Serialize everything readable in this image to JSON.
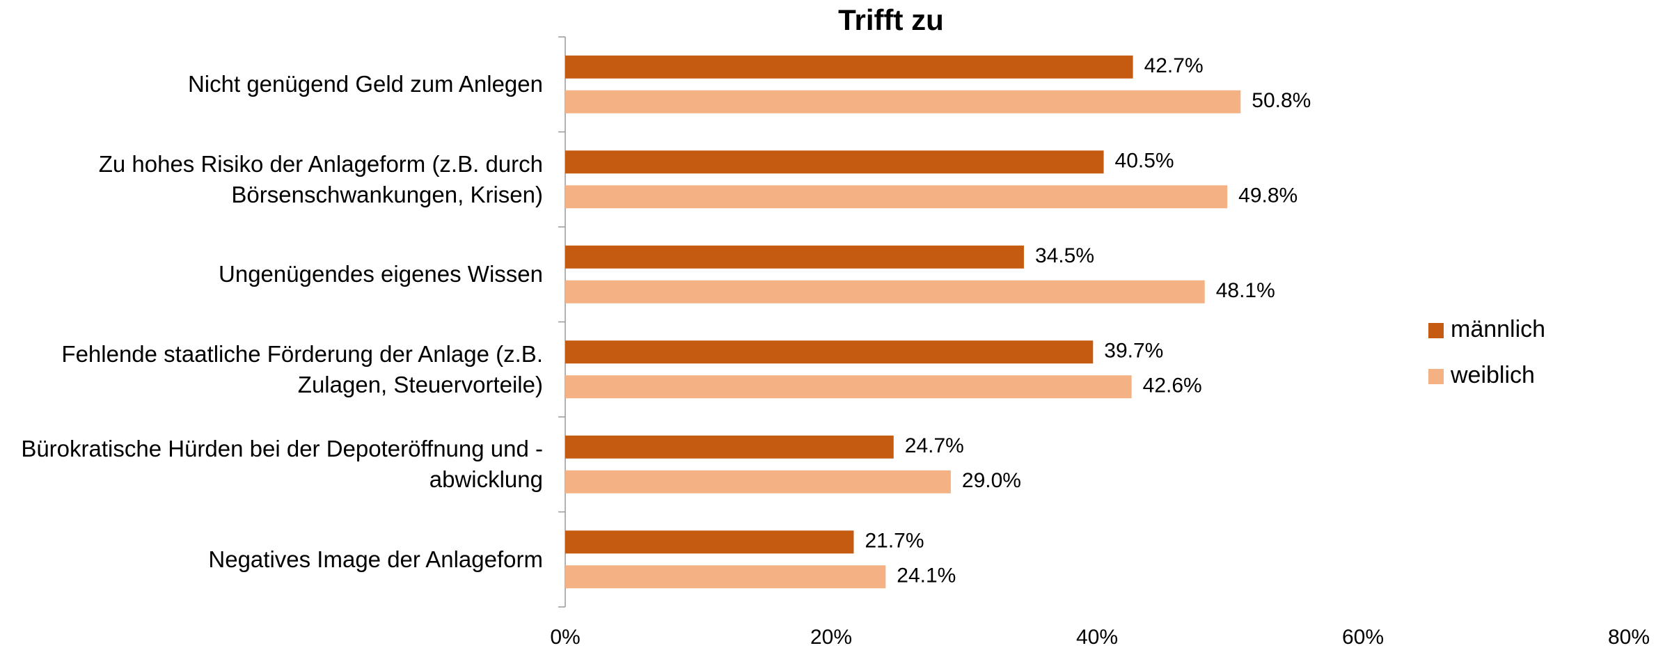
{
  "chart_data": {
    "type": "hbar",
    "title": "Trifft zu",
    "categories": [
      "Nicht genügend Geld zum Anlegen",
      "Zu hohes Risiko der Anlageform (z.B. durch Börsenschwankungen, Krisen)",
      "Ungenügendes eigenes Wissen",
      "Fehlende staatliche Förderung der Anlage (z.B. Zulagen, Steuervorteile)",
      "Bürokratische Hürden bei der Depoteröffnung und -abwicklung",
      "Negatives Image der Anlageform"
    ],
    "series": [
      {
        "name": "männlich",
        "color": "#c55a11",
        "values": [
          42.7,
          40.5,
          34.5,
          39.7,
          24.7,
          21.7
        ],
        "value_labels": [
          "42.7%",
          "40.5%",
          "34.5%",
          "39.7%",
          "24.7%",
          "21.7%"
        ]
      },
      {
        "name": "weiblich",
        "color": "#f4b183",
        "values": [
          50.8,
          49.8,
          48.1,
          42.6,
          29.0,
          24.1
        ],
        "value_labels": [
          "50.8%",
          "49.8%",
          "48.1%",
          "42.6%",
          "29.0%",
          "24.1%"
        ]
      }
    ],
    "xlim": [
      0,
      80
    ],
    "xticks": [
      {
        "value": 0,
        "label": "0%"
      },
      {
        "value": 20,
        "label": "20%"
      },
      {
        "value": 40,
        "label": "40%"
      },
      {
        "value": 60,
        "label": "60%"
      },
      {
        "value": 80,
        "label": "80%"
      }
    ],
    "legend": "right",
    "grid": false
  }
}
